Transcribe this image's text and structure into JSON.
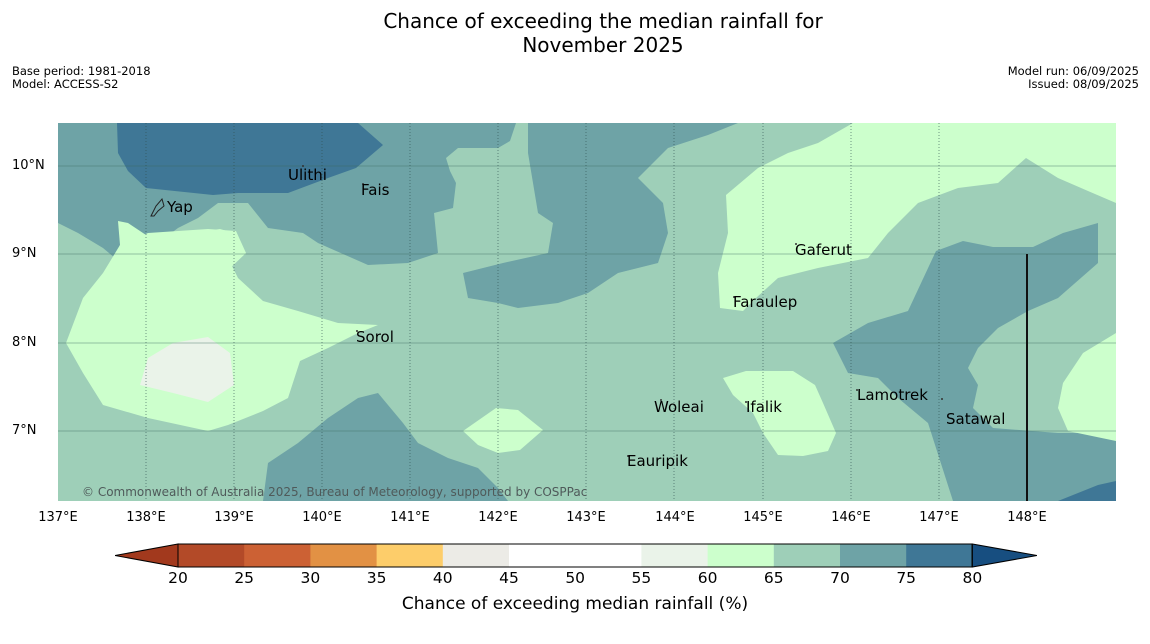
{
  "title_line1": "Chance of exceeding the median rainfall for",
  "title_line2": "November 2025",
  "meta_left": {
    "base_period": "Base period: 1981-2018",
    "model": "Model: ACCESS-S2"
  },
  "meta_right": {
    "model_run": "Model run: 06/09/2025",
    "issued": "Issued: 08/09/2025"
  },
  "map": {
    "lat_labels": [
      "10°N",
      "9°N",
      "8°N",
      "7°N"
    ],
    "lon_labels": [
      "137°E",
      "138°E",
      "139°E",
      "140°E",
      "141°E",
      "142°E",
      "143°E",
      "144°E",
      "145°E",
      "146°E",
      "147°E",
      "148°E"
    ],
    "places": [
      "Yap",
      "Ulithi",
      "Fais",
      "Gaferut",
      "Faraulep",
      "Sorol",
      "Lamotrek",
      "Woleai",
      "Ifalik",
      "Satawal",
      "Eauripik"
    ],
    "copyright": "© Commonwealth of Australia 2025, Bureau of Meteorology, supported by COSPPac",
    "fill_colors": {
      "c60_65": "#ccffcc",
      "c65_70": "#9ecfb8",
      "c70_75": "#6ea3a6",
      "c75_80": "#3f7796",
      "c55_60": "#eaf3e9"
    }
  },
  "colorbar": {
    "ticks": [
      "20",
      "25",
      "30",
      "35",
      "40",
      "45",
      "50",
      "55",
      "60",
      "65",
      "70",
      "75",
      "80"
    ],
    "colors": [
      "#a2391d",
      "#b34a28",
      "#cc6134",
      "#e29144",
      "#fdcd6a",
      "#ecebe6",
      "#ffffff",
      "#ffffff",
      "#eaf3e9",
      "#ccffcc",
      "#9ecfb8",
      "#6ea3a6",
      "#3f7796",
      "#174e80"
    ],
    "label": "Chance of exceeding median rainfall (%)"
  }
}
